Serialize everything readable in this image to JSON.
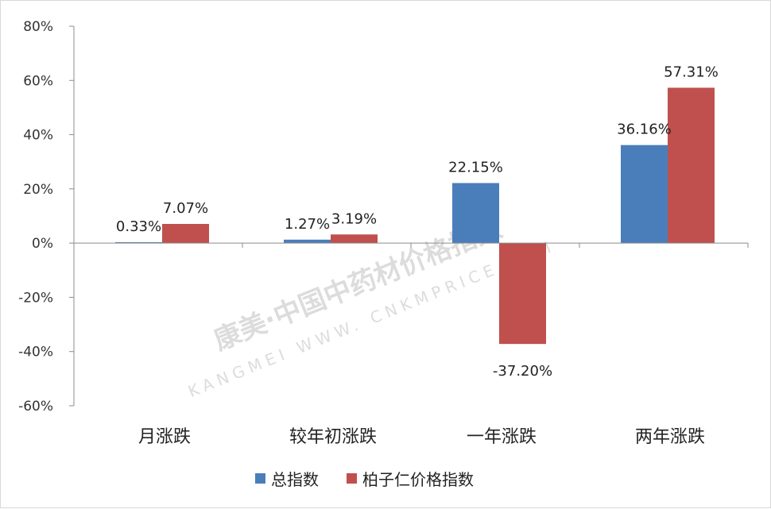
{
  "chart_data": {
    "type": "bar",
    "title": "",
    "xlabel": "",
    "ylabel": "",
    "categories": [
      "月涨跌",
      "较年初涨跌",
      "一年涨跌",
      "两年涨跌"
    ],
    "series": [
      {
        "name": "总指数",
        "color": "#4a7ebb",
        "values": [
          0.33,
          1.27,
          22.15,
          36.16
        ],
        "labels": [
          "0.33%",
          "1.27%",
          "22.15%",
          "36.16%"
        ]
      },
      {
        "name": "柏子仁价格指数",
        "color": "#c0504d",
        "values": [
          7.07,
          3.19,
          -37.2,
          57.31
        ],
        "labels": [
          "7.07%",
          "3.19%",
          "-37.20%",
          "57.31%"
        ]
      }
    ],
    "ylim": [
      -60,
      80
    ],
    "yticks": [
      80,
      60,
      40,
      20,
      0,
      -20,
      -40,
      -60
    ],
    "ytick_labels": [
      "80%",
      "60%",
      "40%",
      "20%",
      "0%",
      "-20%",
      "-40%",
      "-60%"
    ],
    "grid": false,
    "legend_position": "bottom"
  },
  "watermark": {
    "text": "康美·中国中药材价格指数",
    "latin": "KANGMEI WWW. CNKMPRICE.COM"
  }
}
